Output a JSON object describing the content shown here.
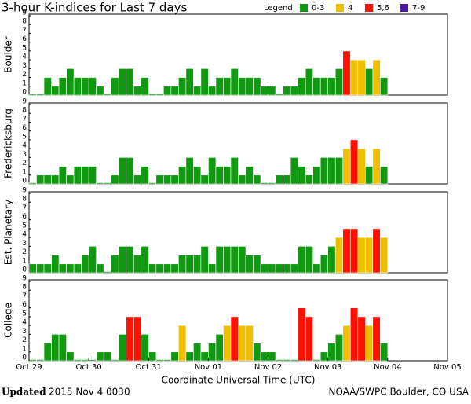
{
  "header": {
    "title": "3-hour K-indices for Last 7 days",
    "legend_title": "Legend:",
    "legend": [
      {
        "label": "0-3",
        "color": "#119911",
        "range": [
          0,
          3
        ]
      },
      {
        "label": "4",
        "color": "#f0c000",
        "range": [
          4,
          4
        ]
      },
      {
        "label": "5,6",
        "color": "#ff1100",
        "range": [
          5,
          6
        ]
      },
      {
        "label": "7-9",
        "color": "#4b1a9a",
        "range": [
          7,
          9
        ]
      }
    ]
  },
  "chart_data": [
    {
      "type": "bar",
      "ylabel": "Boulder",
      "xlim": [
        0,
        56
      ],
      "ylim": [
        0,
        9
      ],
      "yticks": [
        0,
        1,
        2,
        3,
        4,
        5,
        6,
        7,
        8,
        9
      ],
      "values": [
        0,
        0,
        2,
        1,
        2,
        3,
        2,
        2,
        2,
        1,
        0,
        2,
        3,
        3,
        1,
        2,
        0,
        0,
        1,
        1,
        2,
        3,
        1,
        3,
        1,
        2,
        2,
        3,
        2,
        2,
        2,
        1,
        1,
        0,
        1,
        1,
        2,
        3,
        2,
        2,
        2,
        3,
        5,
        4,
        4,
        3,
        4,
        2
      ]
    },
    {
      "type": "bar",
      "ylabel": "Fredericksburg",
      "xlim": [
        0,
        56
      ],
      "ylim": [
        0,
        9
      ],
      "yticks": [
        0,
        1,
        2,
        3,
        4,
        5,
        6,
        7,
        8,
        9
      ],
      "values": [
        0,
        1,
        1,
        1,
        2,
        1,
        2,
        2,
        2,
        0,
        0,
        1,
        3,
        3,
        1,
        2,
        0,
        1,
        1,
        1,
        2,
        3,
        2,
        1,
        3,
        2,
        2,
        3,
        1,
        2,
        1,
        0,
        0,
        1,
        1,
        3,
        2,
        1,
        2,
        3,
        3,
        3,
        4,
        5,
        4,
        2,
        4,
        2
      ]
    },
    {
      "type": "bar",
      "ylabel": "Est. Planetary",
      "xlim": [
        0,
        56
      ],
      "ylim": [
        0,
        9
      ],
      "yticks": [
        0,
        1,
        2,
        3,
        4,
        5,
        6,
        7,
        8,
        9
      ],
      "values": [
        1,
        1,
        1,
        2,
        1,
        1,
        1,
        2,
        3,
        1,
        0,
        2,
        3,
        3,
        2,
        3,
        1,
        1,
        1,
        1,
        2,
        2,
        2,
        3,
        1,
        3,
        3,
        3,
        3,
        2,
        2,
        1,
        1,
        1,
        1,
        1,
        3,
        3,
        1,
        2,
        3,
        4,
        5,
        5,
        4,
        4,
        5,
        4
      ]
    },
    {
      "type": "bar",
      "ylabel": "College",
      "xlim": [
        0,
        56
      ],
      "ylim": [
        0,
        9
      ],
      "yticks": [
        0,
        1,
        2,
        3,
        4,
        5,
        6,
        7,
        8,
        9
      ],
      "values": [
        0,
        0,
        2,
        3,
        3,
        1,
        0,
        0,
        0,
        1,
        1,
        0,
        3,
        5,
        5,
        3,
        1,
        0,
        0,
        1,
        4,
        1,
        2,
        1,
        2,
        3,
        4,
        5,
        4,
        4,
        2,
        1,
        1,
        0,
        0,
        0,
        6,
        5,
        0,
        1,
        2,
        3,
        4,
        6,
        5,
        4,
        5,
        2
      ],
      "xlabel": "Coordinate Universal Time (UTC)",
      "xticks": [
        {
          "value": 0,
          "label": "Oct 29"
        },
        {
          "value": 8,
          "label": "Oct 30"
        },
        {
          "value": 16,
          "label": "Oct 31"
        },
        {
          "value": 24,
          "label": "Nov 01"
        },
        {
          "value": 32,
          "label": "Nov 02"
        },
        {
          "value": 40,
          "label": "Nov 03"
        },
        {
          "value": 48,
          "label": "Nov 04"
        },
        {
          "value": 56,
          "label": "Nov 05"
        }
      ]
    }
  ],
  "footer": {
    "updated_label": "Updated",
    "updated": "2015 Nov  4 0030",
    "source": "NOAA/SWPC Boulder, CO USA"
  }
}
